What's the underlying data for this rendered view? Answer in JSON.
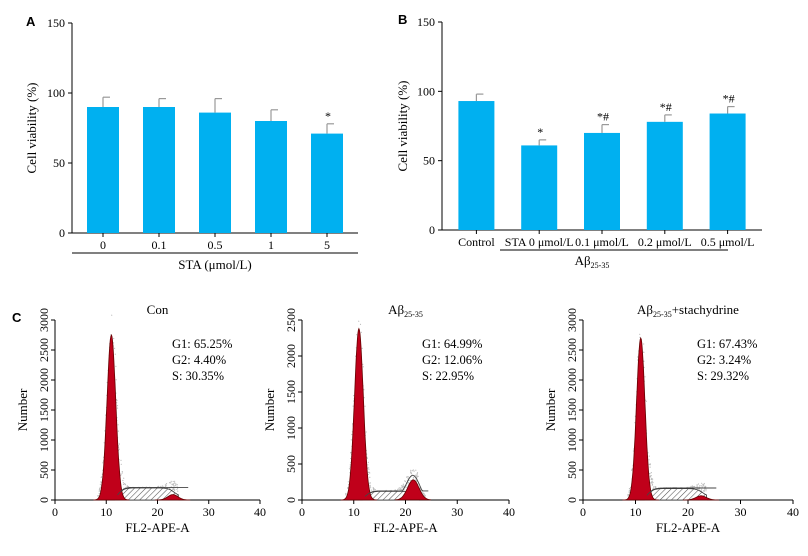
{
  "panels": {
    "a": {
      "letter": "A"
    },
    "b": {
      "letter": "B"
    },
    "c": {
      "letter": "C"
    }
  },
  "chart_data": [
    {
      "id": "A",
      "type": "bar",
      "categories": [
        "0",
        "0.1",
        "0.5",
        "1",
        "5"
      ],
      "values": [
        90,
        90,
        86,
        80,
        71
      ],
      "errors": [
        7,
        6,
        10,
        8,
        7
      ],
      "significance": [
        "",
        "",
        "",
        "",
        "*"
      ],
      "xlabel": "STA (μmol/L)",
      "ylabel": "Cell viability (%)",
      "ylim": [
        0,
        150
      ],
      "yticks": [
        0,
        50,
        100,
        150
      ],
      "color": "#00b0f0"
    },
    {
      "id": "B",
      "type": "bar",
      "categories": [
        "Control",
        "STA 0 μmol/L",
        "0.1 μmol/L",
        "0.2 μmol/L",
        "0.5 μmol/L"
      ],
      "values": [
        93,
        61,
        70,
        78,
        84
      ],
      "errors": [
        5,
        4,
        6,
        5,
        5
      ],
      "significance": [
        "",
        "*",
        "*#",
        "*#",
        "*#"
      ],
      "group_label": "Aβ",
      "group_label_sub": "25-35",
      "ylabel": "Cell viability (%)",
      "ylim": [
        0,
        150
      ],
      "yticks": [
        0,
        50,
        100,
        150
      ],
      "color": "#00b0f0"
    },
    {
      "id": "C1",
      "type": "area",
      "title": "Con",
      "title_sub": "",
      "title_suffix": "",
      "xlabel": "FL2-APE-A",
      "ylabel": "Number",
      "xlim": [
        0,
        40
      ],
      "xticks": [
        0,
        10,
        20,
        30,
        40
      ],
      "ylim": [
        0,
        3000
      ],
      "yticks": [
        0,
        500,
        1000,
        1500,
        2000,
        2500,
        3000
      ],
      "stats": [
        "G1: 65.25%",
        "G2: 4.40%",
        "S: 30.35%"
      ],
      "peaks": {
        "g1_x": 11,
        "g1_height": 2750,
        "g1_width": 0.85,
        "s_level": 200,
        "g2_x": 23,
        "g2_height": 90,
        "g2_width": 1.0
      }
    },
    {
      "id": "C2",
      "type": "area",
      "title": "Aβ",
      "title_sub": "25-35",
      "title_suffix": "",
      "xlabel": "FL2-APE-A",
      "ylabel": "Number",
      "xlim": [
        0,
        40
      ],
      "xticks": [
        0,
        10,
        20,
        30,
        40
      ],
      "ylim": [
        0,
        2500
      ],
      "yticks": [
        0,
        500,
        1000,
        1500,
        2000,
        2500
      ],
      "stats": [
        "G1: 64.99%",
        "G2: 12.06%",
        "S: 22.95%"
      ],
      "peaks": {
        "g1_x": 11,
        "g1_height": 2380,
        "g1_width": 0.85,
        "s_level": 120,
        "g2_x": 21.5,
        "g2_height": 280,
        "g2_width": 1.1
      }
    },
    {
      "id": "C3",
      "type": "area",
      "title": "Aβ",
      "title_sub": "25-35",
      "title_suffix": "+stachydrine",
      "xlabel": "FL2-APE-A",
      "ylabel": "Number",
      "xlim": [
        0,
        40
      ],
      "xticks": [
        0,
        10,
        20,
        30,
        40
      ],
      "ylim": [
        0,
        3000
      ],
      "yticks": [
        0,
        500,
        1000,
        1500,
        2000,
        2500,
        3000
      ],
      "stats": [
        "G1: 67.43%",
        "G2: 3.24%",
        "S: 29.32%"
      ],
      "peaks": {
        "g1_x": 11,
        "g1_height": 2700,
        "g1_width": 0.8,
        "s_level": 190,
        "g2_x": 22.5,
        "g2_height": 70,
        "g2_width": 1.0
      }
    }
  ]
}
